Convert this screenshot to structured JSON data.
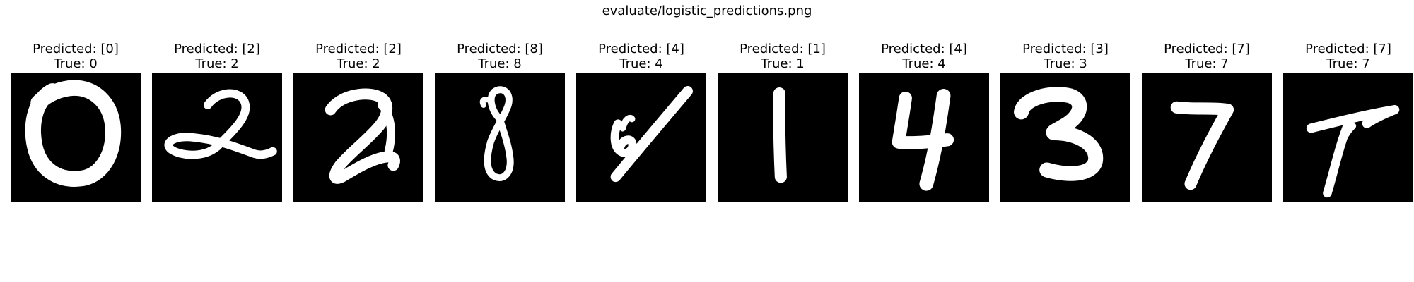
{
  "figure": {
    "title": "evaluate/logistic_predictions.png"
  },
  "samples": [
    {
      "predicted_label": "Predicted: [0]",
      "true_label": "True: 0",
      "digit_icon": "handwritten-digit-0-image"
    },
    {
      "predicted_label": "Predicted: [2]",
      "true_label": "True: 2",
      "digit_icon": "handwritten-digit-2-image"
    },
    {
      "predicted_label": "Predicted: [2]",
      "true_label": "True: 2",
      "digit_icon": "handwritten-digit-2-image"
    },
    {
      "predicted_label": "Predicted: [8]",
      "true_label": "True: 8",
      "digit_icon": "handwritten-digit-8-image"
    },
    {
      "predicted_label": "Predicted: [4]",
      "true_label": "True: 4",
      "digit_icon": "handwritten-digit-4-image"
    },
    {
      "predicted_label": "Predicted: [1]",
      "true_label": "True: 1",
      "digit_icon": "handwritten-digit-1-image"
    },
    {
      "predicted_label": "Predicted: [4]",
      "true_label": "True: 4",
      "digit_icon": "handwritten-digit-4-image"
    },
    {
      "predicted_label": "Predicted: [3]",
      "true_label": "True: 3",
      "digit_icon": "handwritten-digit-3-image"
    },
    {
      "predicted_label": "Predicted: [7]",
      "true_label": "True: 7",
      "digit_icon": "handwritten-digit-7-image"
    },
    {
      "predicted_label": "Predicted: [7]",
      "true_label": "True: 7",
      "digit_icon": "handwritten-digit-7-image"
    }
  ],
  "colors": {
    "image_background": "#000000",
    "digit_stroke": "#ffffff",
    "page_background": "#ffffff"
  }
}
